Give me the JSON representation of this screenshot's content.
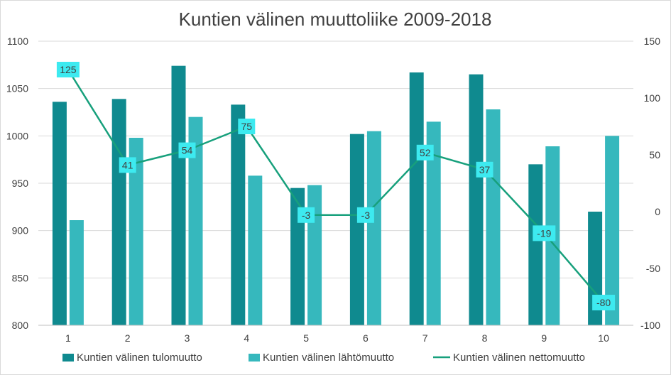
{
  "chart_data": {
    "type": "bar",
    "title": "Kuntien välinen muuttoliike 2009-2018",
    "categories": [
      "1",
      "2",
      "3",
      "4",
      "5",
      "6",
      "7",
      "8",
      "9",
      "10"
    ],
    "y_left": {
      "min": 800,
      "max": 1100,
      "step": 50,
      "ticks": [
        "800",
        "850",
        "900",
        "950",
        "1000",
        "1050",
        "1100"
      ]
    },
    "y_right": {
      "min": -100,
      "max": 150,
      "step": 50,
      "ticks": [
        "-100",
        "-50",
        "0",
        "50",
        "100",
        "150"
      ]
    },
    "grid": "horizontal",
    "legend_position": "bottom",
    "series": [
      {
        "name": "Kuntien välinen tulomuutto",
        "type": "bar",
        "axis": "left",
        "color": "#0f8a8f",
        "values": [
          1036,
          1039,
          1074,
          1033,
          945,
          1002,
          1067,
          1065,
          970,
          920
        ]
      },
      {
        "name": "Kuntien välinen lähtömuutto",
        "type": "bar",
        "axis": "left",
        "color": "#36b8bd",
        "values": [
          911,
          998,
          1020,
          958,
          948,
          1005,
          1015,
          1028,
          989,
          1000
        ]
      },
      {
        "name": "Kuntien välinen nettomuutto",
        "type": "line",
        "axis": "right",
        "color": "#17a07c",
        "label_bg": "#3deaf0",
        "values": [
          125,
          41,
          54,
          75,
          -3,
          -3,
          52,
          37,
          -19,
          -80
        ],
        "labels": [
          "125",
          "41",
          "54",
          "75",
          "-3",
          "-3",
          "52",
          "37",
          "-19",
          "-80"
        ]
      }
    ]
  }
}
